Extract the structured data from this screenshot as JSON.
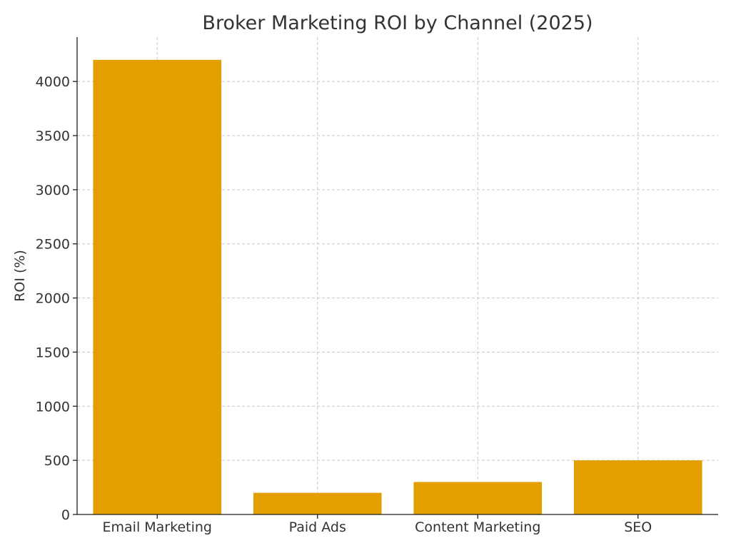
{
  "chart_data": {
    "type": "bar",
    "title": "Broker Marketing ROI by Channel (2025)",
    "xlabel": "",
    "ylabel": "ROI (%)",
    "categories": [
      "Email Marketing",
      "Paid Ads",
      "Content Marketing",
      "SEO"
    ],
    "values": [
      4200,
      200,
      300,
      500
    ],
    "ylim": [
      0,
      4410
    ],
    "yticks": [
      0,
      500,
      1000,
      1500,
      2000,
      2500,
      3000,
      3500,
      4000
    ],
    "ytick_labels": [
      "0",
      "500",
      "1000",
      "1500",
      "2000",
      "2500",
      "3000",
      "3500",
      "4000"
    ],
    "grid": true,
    "bar_color": "#E39F00"
  }
}
